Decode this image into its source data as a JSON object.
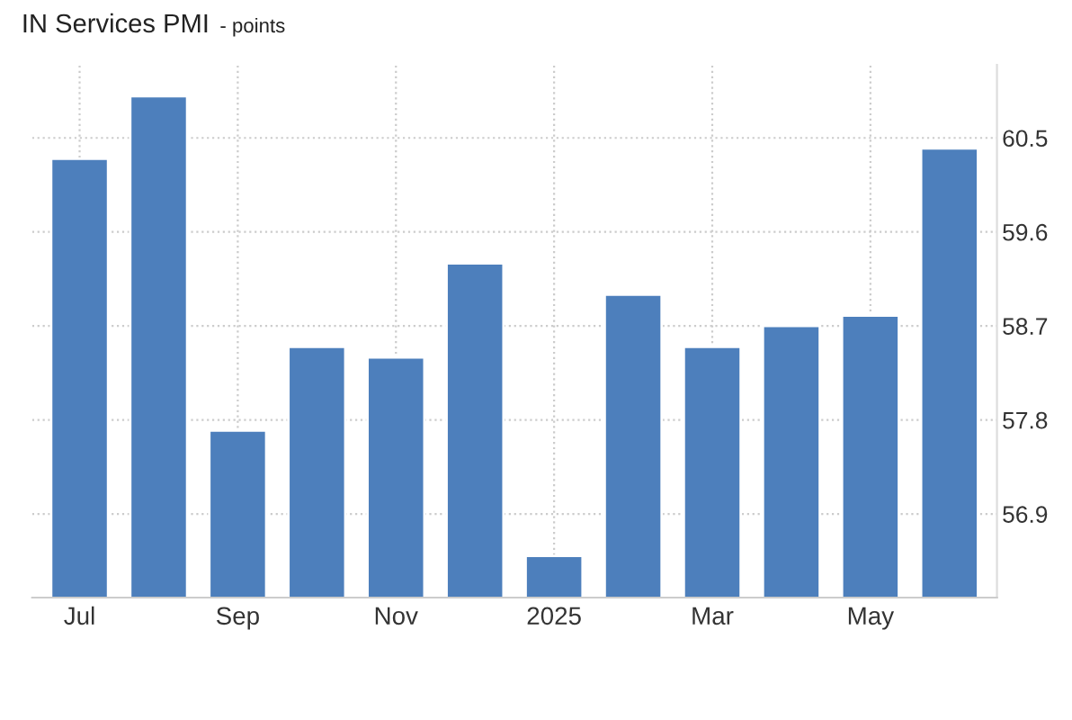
{
  "chart_data": {
    "type": "bar",
    "title": "IN Services PMI",
    "subtitle": "- points",
    "categories": [
      "Jul",
      null,
      "Sep",
      null,
      "Nov",
      null,
      "2025",
      null,
      "Mar",
      null,
      "May",
      null
    ],
    "values": [
      60.3,
      60.9,
      57.7,
      58.5,
      58.4,
      59.3,
      56.5,
      59.0,
      58.5,
      58.7,
      58.8,
      60.4
    ],
    "color": "#4d7fbc",
    "ylim": [
      56.1,
      61.2
    ],
    "yticks": [
      56.9,
      57.8,
      58.7,
      59.6,
      60.5
    ],
    "grid": true
  }
}
